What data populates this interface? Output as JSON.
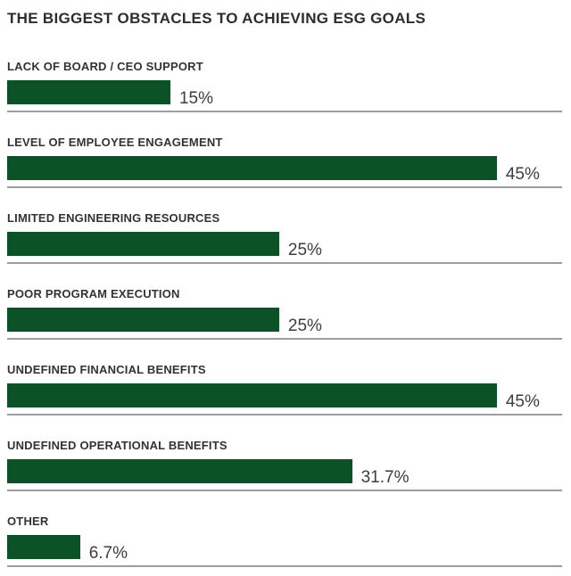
{
  "title": "THE BIGGEST OBSTACLES TO ACHIEVING ESG GOALS",
  "chart_data": {
    "type": "bar",
    "orientation": "horizontal",
    "title": "THE BIGGEST OBSTACLES TO ACHIEVING ESG GOALS",
    "categories": [
      "LACK OF BOARD / CEO SUPPORT",
      "LEVEL OF EMPLOYEE ENGAGEMENT",
      "LIMITED ENGINEERING RESOURCES",
      "POOR PROGRAM EXECUTION",
      "UNDEFINED FINANCIAL BENEFITS",
      "UNDEFINED OPERATIONAL BENEFITS",
      "OTHER"
    ],
    "values": [
      15,
      45,
      25,
      25,
      45,
      31.7,
      6.7
    ],
    "value_labels": [
      "15%",
      "45%",
      "25%",
      "25%",
      "45%",
      "31.7%",
      "6.7%"
    ],
    "xlabel": "",
    "ylabel": "",
    "xlim": [
      0,
      51
    ],
    "grid": false,
    "legend": false,
    "bar_color": "#0B5227",
    "title_color": "#2d2d2d",
    "label_color": "#333333",
    "value_label_color": "#3d3d3d",
    "divider_color": "#9e9e9e"
  }
}
